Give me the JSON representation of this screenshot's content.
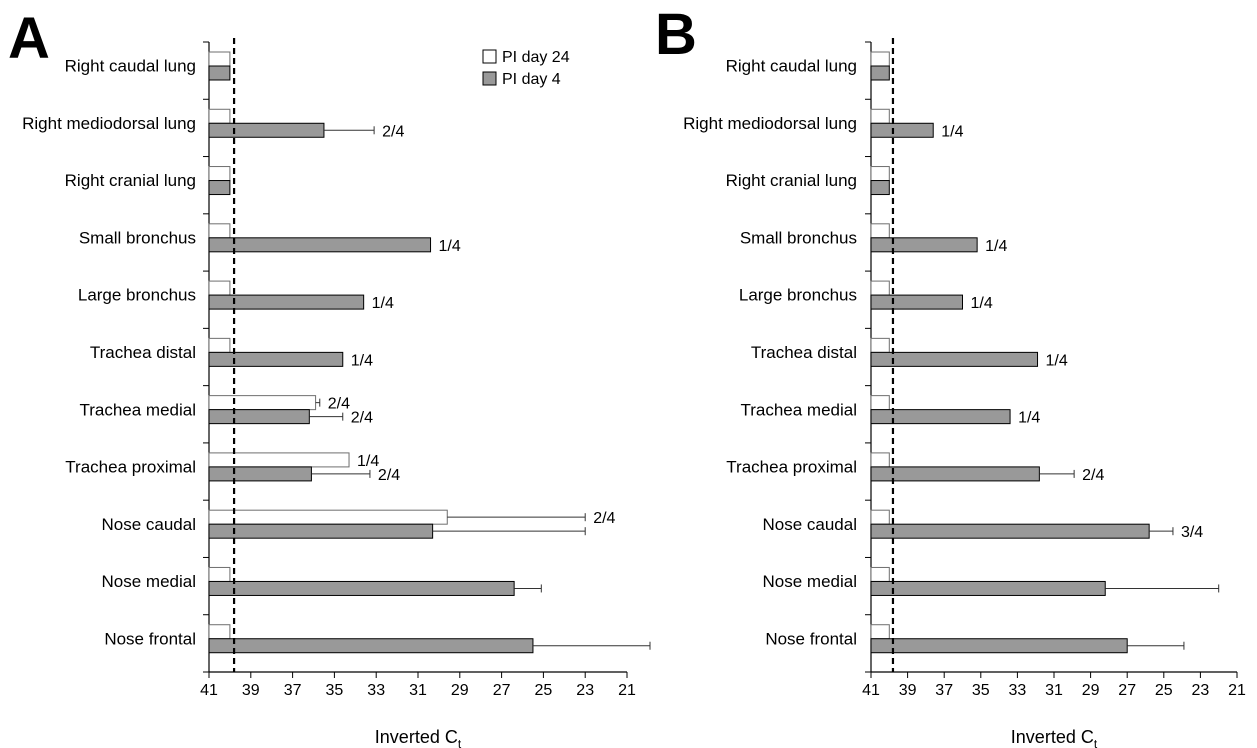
{
  "legend": {
    "items": [
      {
        "label": "PI day 24",
        "color": "#ffffff"
      },
      {
        "label": "PI day 4",
        "color": "#999999"
      }
    ]
  },
  "colors": {
    "day24": "#ffffff",
    "day4": "#999999",
    "bar_stroke": "#000000",
    "axis": "#000000",
    "cutoff_line": "#000000",
    "text": "#000000"
  },
  "chart_data": [
    {
      "panel_label": "A",
      "type": "bar",
      "orientation": "horizontal",
      "categories": [
        "Right caudal lung",
        "Right mediodorsal lung",
        "Right cranial lung",
        "Small bronchus",
        "Large bronchus",
        "Trachea distal",
        "Trachea medial",
        "Trachea proximal",
        "Nose caudal",
        "Nose medial",
        "Nose frontal"
      ],
      "series": [
        {
          "name": "PI day 24",
          "values": [
            40.0,
            40.0,
            40.0,
            40.0,
            40.0,
            40.0,
            35.9,
            34.3,
            29.6,
            40.0,
            40.0
          ],
          "error": [
            null,
            null,
            null,
            null,
            null,
            null,
            0.2,
            null,
            6.6,
            null,
            null
          ],
          "labels": [
            "",
            "",
            "",
            "",
            "",
            "",
            "2/4",
            "1/4",
            "2/4",
            "",
            ""
          ]
        },
        {
          "name": "PI day 4",
          "values": [
            40.0,
            35.5,
            40.0,
            30.4,
            33.6,
            34.6,
            36.2,
            36.1,
            30.3,
            26.4,
            25.5
          ],
          "error": [
            null,
            2.4,
            null,
            null,
            null,
            null,
            1.6,
            2.8,
            7.3,
            1.3,
            5.6
          ],
          "labels": [
            "",
            "2/4",
            "",
            "1/4",
            "1/4",
            "1/4",
            "2/4",
            "2/4",
            "",
            "",
            ""
          ]
        }
      ],
      "xlabel": "Inverted C",
      "xlabel_subscript": "t",
      "xlim": [
        41,
        21
      ],
      "xticks": [
        41,
        39,
        37,
        35,
        33,
        31,
        29,
        27,
        25,
        23,
        21
      ],
      "cutoff": 39.8,
      "grid": false,
      "legend_position": "top-right"
    },
    {
      "panel_label": "B",
      "type": "bar",
      "orientation": "horizontal",
      "categories": [
        "Right caudal lung",
        "Right mediodorsal lung",
        "Right cranial lung",
        "Small bronchus",
        "Large bronchus",
        "Trachea distal",
        "Trachea medial",
        "Trachea proximal",
        "Nose caudal",
        "Nose medial",
        "Nose frontal"
      ],
      "series": [
        {
          "name": "PI day 24",
          "values": [
            40.0,
            40.0,
            40.0,
            40.0,
            40.0,
            40.0,
            40.0,
            40.0,
            40.0,
            40.0,
            40.0
          ],
          "error": [
            null,
            null,
            null,
            null,
            null,
            null,
            null,
            null,
            null,
            null,
            null
          ],
          "labels": [
            "",
            "",
            "",
            "",
            "",
            "",
            "",
            "",
            "",
            "",
            ""
          ]
        },
        {
          "name": "PI day 4",
          "values": [
            40.0,
            37.6,
            40.0,
            35.2,
            36.0,
            31.9,
            33.4,
            31.8,
            25.8,
            28.2,
            27.0
          ],
          "error": [
            null,
            null,
            null,
            null,
            null,
            null,
            null,
            1.9,
            1.3,
            6.2,
            3.1
          ],
          "labels": [
            "",
            "1/4",
            "",
            "1/4",
            "1/4",
            "1/4",
            "1/4",
            "2/4",
            "3/4",
            "",
            ""
          ]
        }
      ],
      "xlabel": "Inverted C",
      "xlabel_subscript": "t",
      "xlim": [
        41,
        21
      ],
      "xticks": [
        41,
        39,
        37,
        35,
        33,
        31,
        29,
        27,
        25,
        23,
        21
      ],
      "cutoff": 39.8,
      "grid": false,
      "legend_position": "none"
    }
  ]
}
